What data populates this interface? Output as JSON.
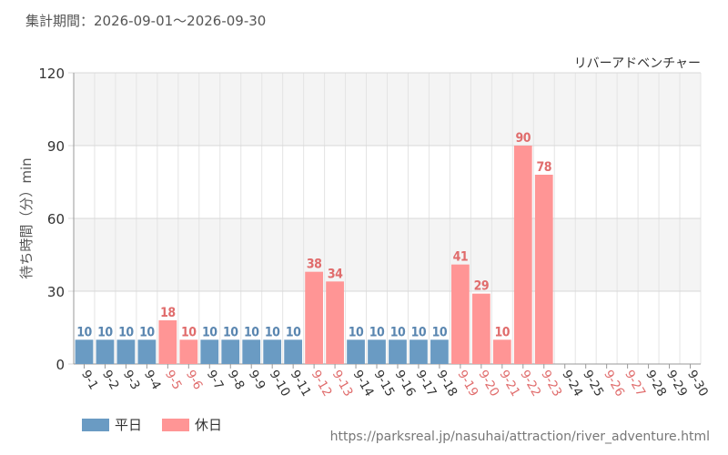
{
  "header": {
    "period": "集計期間：2026-09-01～2026-09-30"
  },
  "chart_data": {
    "type": "bar",
    "title": "リバーアドベンチャー",
    "ylabel": "待ち時間（分）min",
    "ylim": [
      0,
      120
    ],
    "yticks": [
      0,
      30,
      60,
      90,
      120
    ],
    "grid": true,
    "categories": [
      "9-1",
      "9-2",
      "9-3",
      "9-4",
      "9-5",
      "9-6",
      "9-7",
      "9-8",
      "9-9",
      "9-10",
      "9-11",
      "9-12",
      "9-13",
      "9-14",
      "9-15",
      "9-16",
      "9-17",
      "9-18",
      "9-19",
      "9-20",
      "9-21",
      "9-22",
      "9-23",
      "9-24",
      "9-25",
      "9-26",
      "9-27",
      "9-28",
      "9-29",
      "9-30"
    ],
    "values": [
      10,
      10,
      10,
      10,
      18,
      10,
      10,
      10,
      10,
      10,
      10,
      38,
      34,
      10,
      10,
      10,
      10,
      10,
      41,
      29,
      10,
      90,
      78,
      null,
      null,
      null,
      null,
      null,
      null,
      null
    ],
    "day_type": [
      "weekday",
      "weekday",
      "weekday",
      "weekday",
      "holiday",
      "holiday",
      "weekday",
      "weekday",
      "weekday",
      "weekday",
      "weekday",
      "holiday",
      "holiday",
      "weekday",
      "weekday",
      "weekday",
      "weekday",
      "weekday",
      "holiday",
      "holiday",
      "holiday",
      "holiday",
      "holiday",
      "weekday",
      "weekday",
      "holiday",
      "holiday",
      "weekday",
      "weekday",
      "weekday"
    ],
    "legend": [
      {
        "key": "weekday",
        "label": "平日",
        "color": "#6a9bc3"
      },
      {
        "key": "holiday",
        "label": "休日",
        "color": "#ff9595"
      }
    ],
    "label_colors": {
      "weekday": "#5a86b0",
      "holiday": "#e06c6c"
    }
  },
  "footer": {
    "source": "https://parksreal.jp/nasuhai/attraction/river_adventure.html"
  }
}
